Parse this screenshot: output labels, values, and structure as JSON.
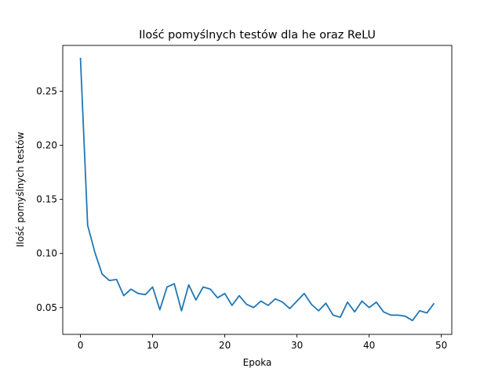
{
  "chart_data": {
    "type": "line",
    "title": "Ilość pomyślnych testów dla he oraz ReLU",
    "xlabel": "Epoka",
    "ylabel": "Ilość pomyślnych testów",
    "xlim": [
      -2.45,
      51.45
    ],
    "ylim": [
      0.0252,
      0.2924
    ],
    "xticks": [
      0,
      10,
      20,
      30,
      40,
      50
    ],
    "yticks": [
      0.05,
      0.1,
      0.15,
      0.2,
      0.25
    ],
    "ytick_labels": [
      "0.05",
      "0.10",
      "0.15",
      "0.20",
      "0.25"
    ],
    "grid": false,
    "line_color": "#1f77b4",
    "x": [
      0,
      1,
      2,
      3,
      4,
      5,
      6,
      7,
      8,
      9,
      10,
      11,
      12,
      13,
      14,
      15,
      16,
      17,
      18,
      19,
      20,
      21,
      22,
      23,
      24,
      25,
      26,
      27,
      28,
      29,
      30,
      31,
      32,
      33,
      34,
      35,
      36,
      37,
      38,
      39,
      40,
      41,
      42,
      43,
      44,
      45,
      46,
      47,
      48,
      49
    ],
    "values": [
      0.281,
      0.126,
      0.101,
      0.081,
      0.075,
      0.076,
      0.061,
      0.067,
      0.063,
      0.062,
      0.069,
      0.048,
      0.069,
      0.072,
      0.047,
      0.071,
      0.057,
      0.069,
      0.067,
      0.059,
      0.063,
      0.052,
      0.061,
      0.053,
      0.05,
      0.056,
      0.052,
      0.058,
      0.055,
      0.049,
      0.056,
      0.063,
      0.053,
      0.047,
      0.054,
      0.043,
      0.041,
      0.055,
      0.046,
      0.056,
      0.05,
      0.055,
      0.046,
      0.043,
      0.043,
      0.042,
      0.038,
      0.047,
      0.045,
      0.054
    ]
  }
}
